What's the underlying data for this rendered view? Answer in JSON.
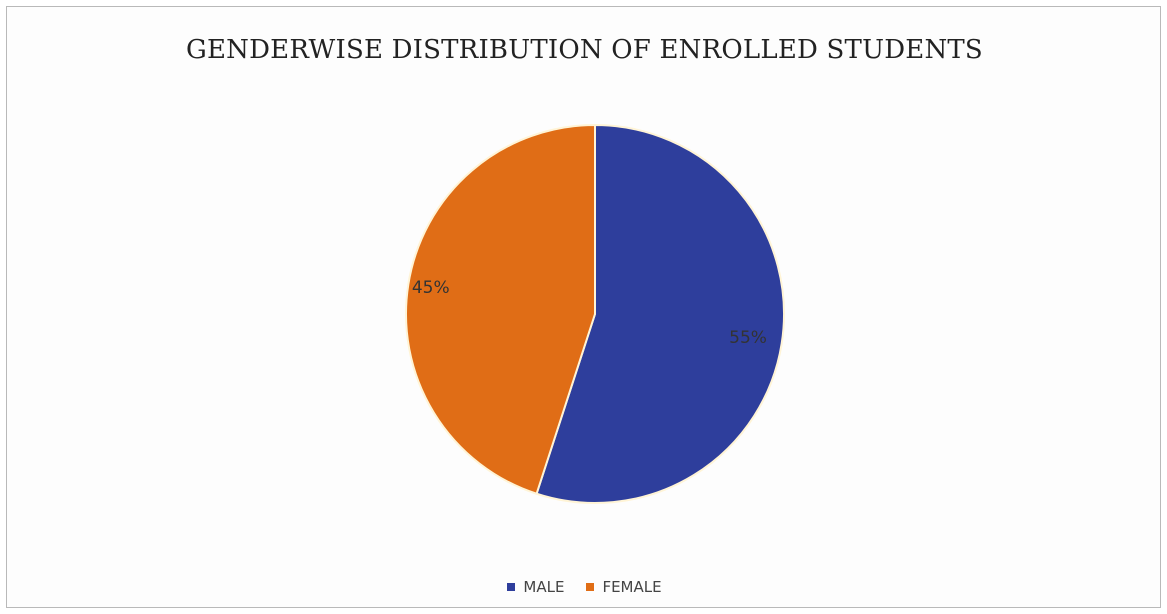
{
  "chart_data": {
    "type": "pie",
    "title": "GENDERWISE DISTRIBUTION OF ENROLLED STUDENTS",
    "categories": [
      "MALE",
      "FEMALE"
    ],
    "values": [
      55,
      45
    ],
    "labels": [
      "55%",
      "45%"
    ],
    "colors": [
      "#2e3e9c",
      "#e06d16"
    ],
    "legend_position": "bottom"
  }
}
